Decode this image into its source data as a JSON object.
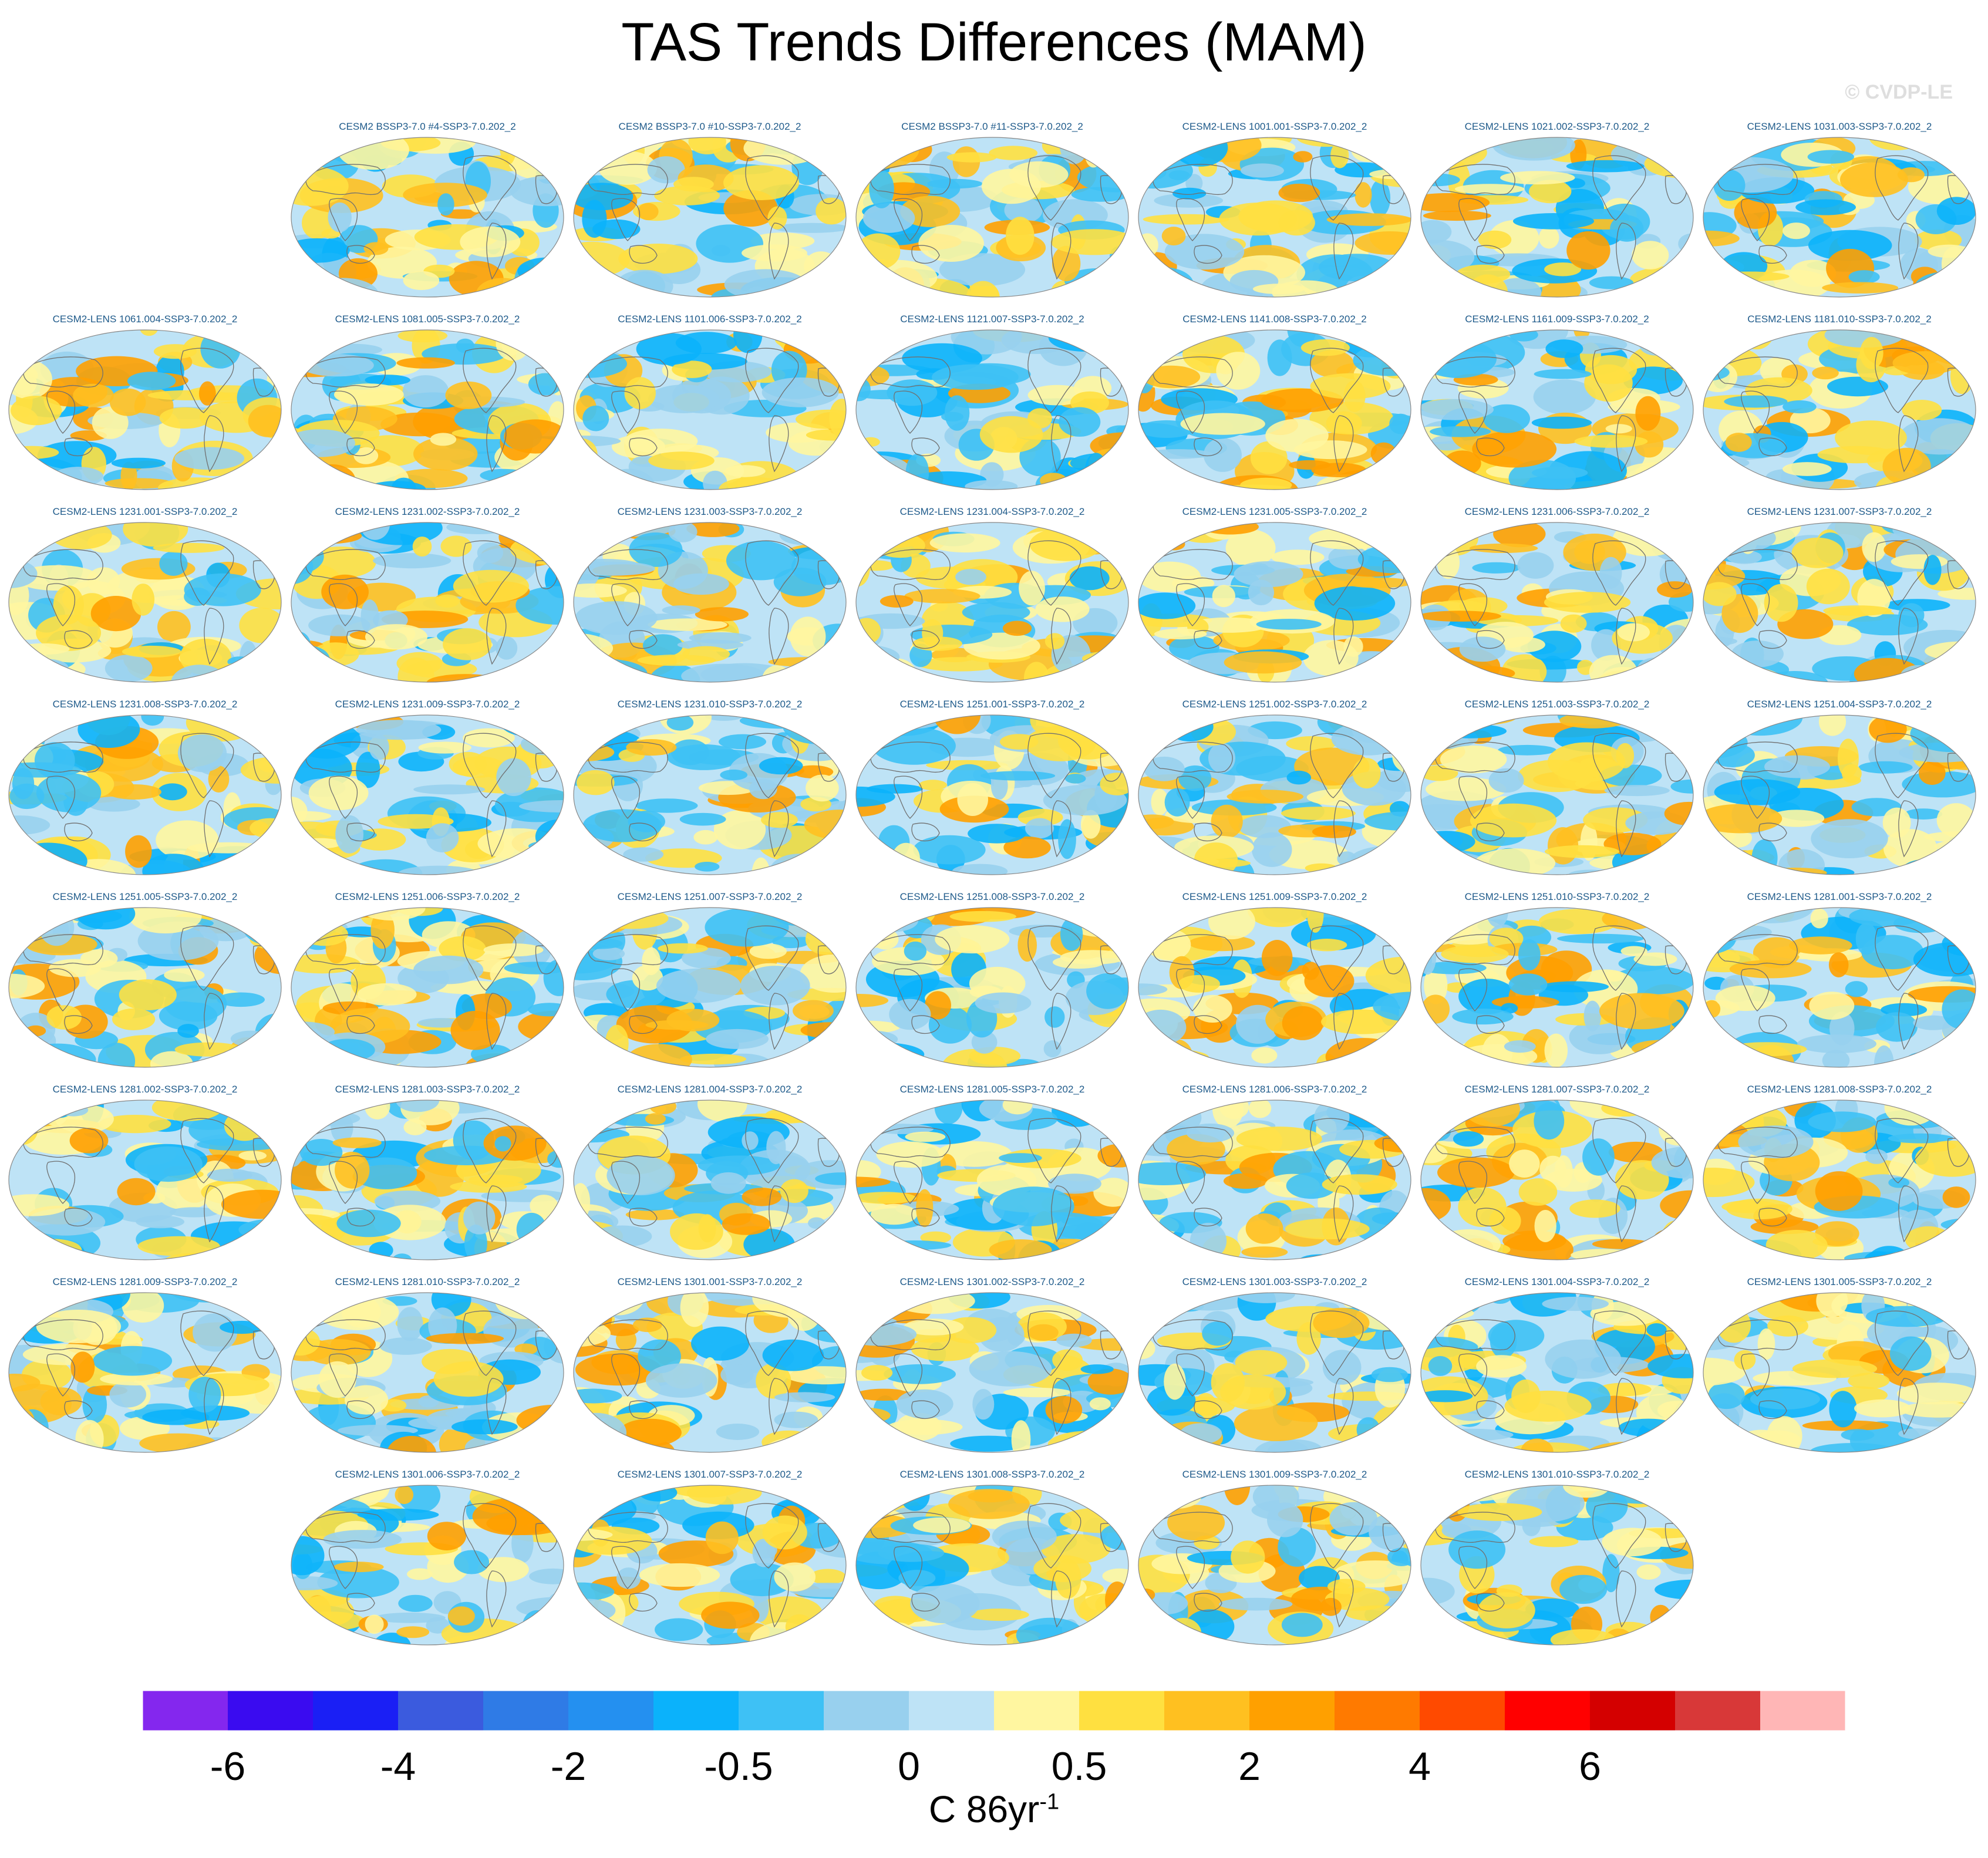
{
  "title": "TAS Trends Differences (MAM)",
  "watermark": "© CVDP-LE",
  "units": {
    "base": "C 86yr",
    "exponent": "-1"
  },
  "chart_data": {
    "type": "heatmap",
    "title": "TAS Trends Differences (MAM)",
    "colorbar": {
      "label": "C 86yr-1",
      "tick_labels": [
        "-6",
        "-4",
        "-2",
        "-0.5",
        "0",
        "0.5",
        "2",
        "4",
        "6"
      ],
      "colors": [
        "#8427ee",
        "#3a0bf0",
        "#1a1ff5",
        "#3b5bde",
        "#2f7be6",
        "#2490f0",
        "#0bb2fb",
        "#3ec1f5",
        "#98d0ee",
        "#bee3f6",
        "#fff6a0",
        "#ffe040",
        "#ffc020",
        "#ffa000",
        "#ff7a00",
        "#ff4a00",
        "#ff0000",
        "#d40000",
        "#d83838",
        "#ffb6b6"
      ]
    },
    "panels": [
      {
        "row": 0,
        "col": 1,
        "title": "CESM2 BSSP3-7.0 #4-SSP3-7.0.202_2"
      },
      {
        "row": 0,
        "col": 2,
        "title": "CESM2 BSSP3-7.0 #10-SSP3-7.0.202_2"
      },
      {
        "row": 0,
        "col": 3,
        "title": "CESM2 BSSP3-7.0 #11-SSP3-7.0.202_2"
      },
      {
        "row": 0,
        "col": 4,
        "title": "CESM2-LENS 1001.001-SSP3-7.0.202_2"
      },
      {
        "row": 0,
        "col": 5,
        "title": "CESM2-LENS 1021.002-SSP3-7.0.202_2"
      },
      {
        "row": 0,
        "col": 6,
        "title": "CESM2-LENS 1031.003-SSP3-7.0.202_2"
      },
      {
        "row": 1,
        "col": 0,
        "title": "CESM2-LENS 1061.004-SSP3-7.0.202_2"
      },
      {
        "row": 1,
        "col": 1,
        "title": "CESM2-LENS 1081.005-SSP3-7.0.202_2"
      },
      {
        "row": 1,
        "col": 2,
        "title": "CESM2-LENS 1101.006-SSP3-7.0.202_2"
      },
      {
        "row": 1,
        "col": 3,
        "title": "CESM2-LENS 1121.007-SSP3-7.0.202_2"
      },
      {
        "row": 1,
        "col": 4,
        "title": "CESM2-LENS 1141.008-SSP3-7.0.202_2"
      },
      {
        "row": 1,
        "col": 5,
        "title": "CESM2-LENS 1161.009-SSP3-7.0.202_2"
      },
      {
        "row": 1,
        "col": 6,
        "title": "CESM2-LENS 1181.010-SSP3-7.0.202_2"
      },
      {
        "row": 2,
        "col": 0,
        "title": "CESM2-LENS 1231.001-SSP3-7.0.202_2"
      },
      {
        "row": 2,
        "col": 1,
        "title": "CESM2-LENS 1231.002-SSP3-7.0.202_2"
      },
      {
        "row": 2,
        "col": 2,
        "title": "CESM2-LENS 1231.003-SSP3-7.0.202_2"
      },
      {
        "row": 2,
        "col": 3,
        "title": "CESM2-LENS 1231.004-SSP3-7.0.202_2"
      },
      {
        "row": 2,
        "col": 4,
        "title": "CESM2-LENS 1231.005-SSP3-7.0.202_2"
      },
      {
        "row": 2,
        "col": 5,
        "title": "CESM2-LENS 1231.006-SSP3-7.0.202_2"
      },
      {
        "row": 2,
        "col": 6,
        "title": "CESM2-LENS 1231.007-SSP3-7.0.202_2"
      },
      {
        "row": 3,
        "col": 0,
        "title": "CESM2-LENS 1231.008-SSP3-7.0.202_2"
      },
      {
        "row": 3,
        "col": 1,
        "title": "CESM2-LENS 1231.009-SSP3-7.0.202_2"
      },
      {
        "row": 3,
        "col": 2,
        "title": "CESM2-LENS 1231.010-SSP3-7.0.202_2"
      },
      {
        "row": 3,
        "col": 3,
        "title": "CESM2-LENS 1251.001-SSP3-7.0.202_2"
      },
      {
        "row": 3,
        "col": 4,
        "title": "CESM2-LENS 1251.002-SSP3-7.0.202_2"
      },
      {
        "row": 3,
        "col": 5,
        "title": "CESM2-LENS 1251.003-SSP3-7.0.202_2"
      },
      {
        "row": 3,
        "col": 6,
        "title": "CESM2-LENS 1251.004-SSP3-7.0.202_2"
      },
      {
        "row": 4,
        "col": 0,
        "title": "CESM2-LENS 1251.005-SSP3-7.0.202_2"
      },
      {
        "row": 4,
        "col": 1,
        "title": "CESM2-LENS 1251.006-SSP3-7.0.202_2"
      },
      {
        "row": 4,
        "col": 2,
        "title": "CESM2-LENS 1251.007-SSP3-7.0.202_2"
      },
      {
        "row": 4,
        "col": 3,
        "title": "CESM2-LENS 1251.008-SSP3-7.0.202_2"
      },
      {
        "row": 4,
        "col": 4,
        "title": "CESM2-LENS 1251.009-SSP3-7.0.202_2"
      },
      {
        "row": 4,
        "col": 5,
        "title": "CESM2-LENS 1251.010-SSP3-7.0.202_2"
      },
      {
        "row": 4,
        "col": 6,
        "title": "CESM2-LENS 1281.001-SSP3-7.0.202_2"
      },
      {
        "row": 5,
        "col": 0,
        "title": "CESM2-LENS 1281.002-SSP3-7.0.202_2"
      },
      {
        "row": 5,
        "col": 1,
        "title": "CESM2-LENS 1281.003-SSP3-7.0.202_2"
      },
      {
        "row": 5,
        "col": 2,
        "title": "CESM2-LENS 1281.004-SSP3-7.0.202_2"
      },
      {
        "row": 5,
        "col": 3,
        "title": "CESM2-LENS 1281.005-SSP3-7.0.202_2"
      },
      {
        "row": 5,
        "col": 4,
        "title": "CESM2-LENS 1281.006-SSP3-7.0.202_2"
      },
      {
        "row": 5,
        "col": 5,
        "title": "CESM2-LENS 1281.007-SSP3-7.0.202_2"
      },
      {
        "row": 5,
        "col": 6,
        "title": "CESM2-LENS 1281.008-SSP3-7.0.202_2"
      },
      {
        "row": 6,
        "col": 0,
        "title": "CESM2-LENS 1281.009-SSP3-7.0.202_2"
      },
      {
        "row": 6,
        "col": 1,
        "title": "CESM2-LENS 1281.010-SSP3-7.0.202_2"
      },
      {
        "row": 6,
        "col": 2,
        "title": "CESM2-LENS 1301.001-SSP3-7.0.202_2"
      },
      {
        "row": 6,
        "col": 3,
        "title": "CESM2-LENS 1301.002-SSP3-7.0.202_2"
      },
      {
        "row": 6,
        "col": 4,
        "title": "CESM2-LENS 1301.003-SSP3-7.0.202_2"
      },
      {
        "row": 6,
        "col": 5,
        "title": "CESM2-LENS 1301.004-SSP3-7.0.202_2"
      },
      {
        "row": 6,
        "col": 6,
        "title": "CESM2-LENS 1301.005-SSP3-7.0.202_2"
      },
      {
        "row": 7,
        "col": 1,
        "title": "CESM2-LENS 1301.006-SSP3-7.0.202_2"
      },
      {
        "row": 7,
        "col": 2,
        "title": "CESM2-LENS 1301.007-SSP3-7.0.202_2"
      },
      {
        "row": 7,
        "col": 3,
        "title": "CESM2-LENS 1301.008-SSP3-7.0.202_2"
      },
      {
        "row": 7,
        "col": 4,
        "title": "CESM2-LENS 1301.009-SSP3-7.0.202_2"
      },
      {
        "row": 7,
        "col": 5,
        "title": "CESM2-LENS 1301.010-SSP3-7.0.202_2"
      }
    ]
  }
}
